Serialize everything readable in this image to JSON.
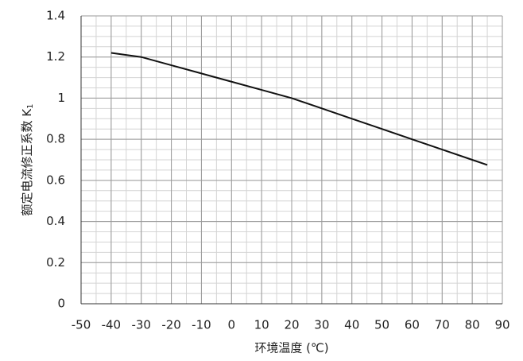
{
  "chart_data": {
    "type": "line",
    "xlabel": "环境温度 (℃)",
    "ylabel": "额定电流修正系数 K",
    "ylabel_subscript": "1",
    "x": [
      -40,
      -30,
      -20,
      -10,
      0,
      10,
      20,
      30,
      40,
      50,
      60,
      70,
      80,
      85
    ],
    "series": [
      {
        "color": "#111111",
        "values": [
          1.22,
          1.2,
          1.16,
          1.12,
          1.08,
          1.04,
          1.0,
          0.95,
          0.9,
          0.85,
          0.8,
          0.75,
          0.7,
          0.675
        ]
      }
    ],
    "xlim": [
      -50,
      90
    ],
    "xticks": [
      -50,
      -40,
      -30,
      -20,
      -10,
      0,
      10,
      20,
      30,
      40,
      50,
      60,
      70,
      80,
      90
    ],
    "ylim": [
      0,
      1.4
    ],
    "yticks": [
      0,
      0.2,
      0.4,
      0.6,
      0.8,
      1,
      1.2,
      1.4
    ],
    "grid": true,
    "minor_xstep": 5,
    "minor_ystep": 0.05
  }
}
